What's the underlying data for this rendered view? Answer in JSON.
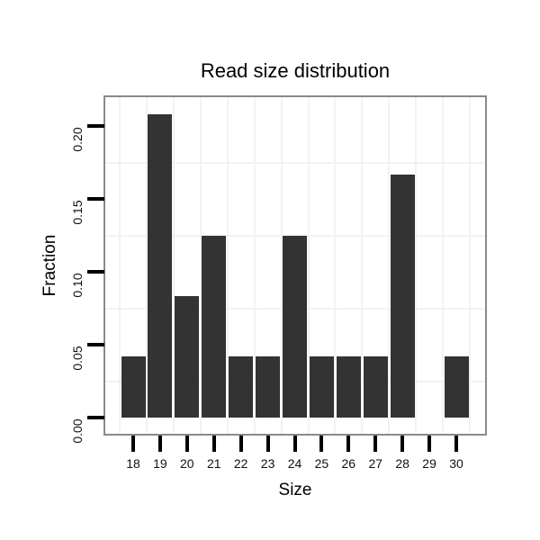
{
  "title": "Read size distribution",
  "chart_data": {
    "type": "bar",
    "title": "Read size distribution",
    "xlabel": "Size",
    "ylabel": "Fraction",
    "categories": [
      "18",
      "19",
      "20",
      "21",
      "22",
      "23",
      "24",
      "25",
      "26",
      "27",
      "28",
      "29",
      "30"
    ],
    "values": [
      0.0417,
      0.2083,
      0.0833,
      0.125,
      0.0417,
      0.0417,
      0.125,
      0.0417,
      0.0417,
      0.0417,
      0.1667,
      0.0,
      0.0417
    ],
    "y_tick_labels": [
      "0.00",
      "0.05",
      "0.10",
      "0.15",
      "0.20"
    ],
    "y_tick_values": [
      0.0,
      0.05,
      0.1,
      0.15,
      0.2
    ],
    "minor_y_values": [
      0.025,
      0.075,
      0.125,
      0.175
    ],
    "ylim": [
      -0.011,
      0.221
    ],
    "grid": "minor-only",
    "legend": "none",
    "bar_color": "#333333",
    "panel_border_color": "#8a8a8a",
    "minor_grid_color": "#f2f2f2",
    "tick_mark_color": "#000000",
    "text_color": "#111111"
  }
}
